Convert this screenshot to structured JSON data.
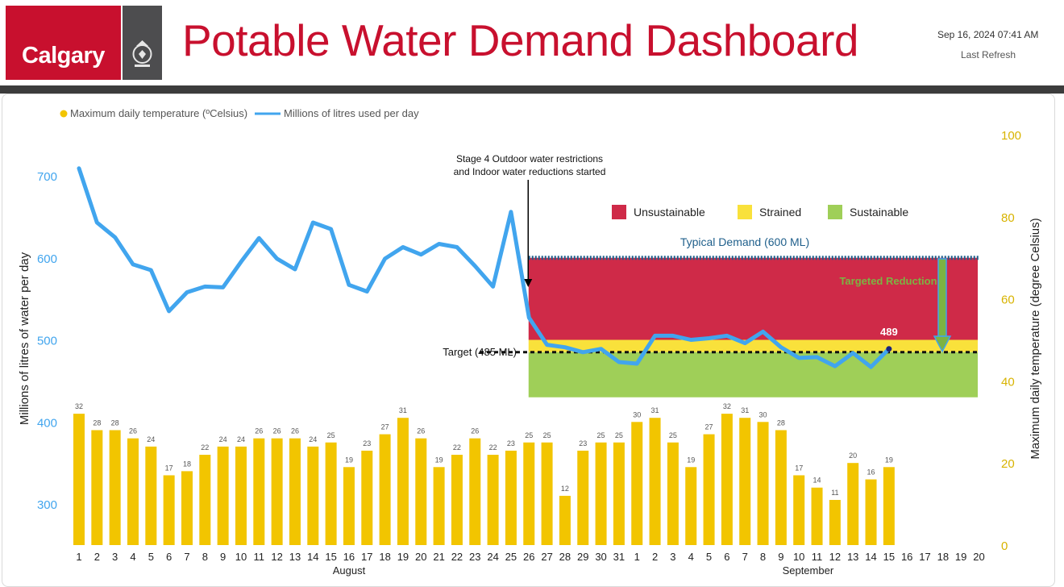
{
  "header": {
    "logo_text": "Calgary",
    "title": "Potable Water Demand Dashboard",
    "refresh_date": "Sep 16, 2024 07:41 AM",
    "refresh_label": "Last Refresh"
  },
  "chart_data": {
    "type": "bar",
    "title": "Potable Water Demand Dashboard",
    "legend": [
      {
        "label": "Maximum daily temperature (ºCelsius)",
        "color": "#f2c500",
        "marker": "dot"
      },
      {
        "label": "Millions of litres used per day",
        "color": "#41a5ee",
        "marker": "line"
      }
    ],
    "categories": [
      "1",
      "2",
      "3",
      "4",
      "5",
      "6",
      "7",
      "8",
      "9",
      "10",
      "11",
      "12",
      "13",
      "14",
      "15",
      "16",
      "17",
      "18",
      "19",
      "20",
      "21",
      "22",
      "23",
      "24",
      "25",
      "26",
      "27",
      "28",
      "29",
      "30",
      "31",
      "1",
      "2",
      "3",
      "4",
      "5",
      "6",
      "7",
      "8",
      "9",
      "10",
      "11",
      "12",
      "13",
      "14",
      "15",
      "16",
      "17",
      "18",
      "19",
      "20"
    ],
    "month_labels": [
      {
        "label": "August",
        "start_index": 0,
        "end_index": 30
      },
      {
        "label": "September",
        "start_index": 31,
        "end_index": 50
      }
    ],
    "series": [
      {
        "name": "Maximum daily temperature (ºCelsius)",
        "type": "bar",
        "axis": "right",
        "color": "#f2c500",
        "values": [
          32,
          28,
          28,
          26,
          24,
          17,
          18,
          22,
          24,
          24,
          26,
          26,
          26,
          24,
          25,
          19,
          23,
          27,
          31,
          26,
          19,
          22,
          26,
          22,
          23,
          25,
          25,
          12,
          23,
          25,
          25,
          30,
          31,
          25,
          19,
          27,
          32,
          31,
          30,
          28,
          17,
          14,
          11,
          20,
          16,
          19,
          null,
          null,
          null,
          null,
          null
        ]
      },
      {
        "name": "Millions of litres used per day",
        "type": "line",
        "axis": "left",
        "color": "#41a5ee",
        "values": [
          709,
          643,
          625,
          592,
          585,
          535,
          558,
          565,
          564,
          595,
          624,
          599,
          586,
          643,
          635,
          567,
          559,
          599,
          613,
          604,
          617,
          613,
          590,
          565,
          656,
          527,
          494,
          491,
          485,
          489,
          473,
          471,
          505,
          505,
          500,
          502,
          505,
          496,
          510,
          491,
          478,
          479,
          468,
          484,
          467,
          489,
          null,
          null,
          null,
          null,
          null
        ]
      }
    ],
    "y_left": {
      "label": "Millions of litres of water per day",
      "ticks": [
        300,
        400,
        500,
        600,
        700
      ],
      "range": [
        250,
        740
      ],
      "color": "#41a5ee"
    },
    "y_right": {
      "label": "Maximum daily temperature (degree Celsius)",
      "ticks": [
        0,
        20,
        40,
        60,
        80,
        100
      ],
      "range": [
        0,
        100
      ],
      "color": "#f2c500"
    },
    "zones": [
      {
        "label": "Unsustainable",
        "color": "#cf2a48",
        "from": 500,
        "to": 600
      },
      {
        "label": "Strained",
        "color": "#f9e13b",
        "from": 485,
        "to": 500
      },
      {
        "label": "Sustainable",
        "color": "#9fcf58",
        "from": 430,
        "to": 485
      }
    ],
    "zone_start_index": 25,
    "typical_demand": {
      "label": "Typical Demand (600 ML)",
      "value": 600
    },
    "target": {
      "label": "Target (485 ML)",
      "value": 485
    },
    "targeted_reduction_label": "Targeted Reduction",
    "latest_value_label": "489",
    "annotation": {
      "line1": "Stage 4 Outdoor water restrictions",
      "line2": "and Indoor water reductions started",
      "index": 25
    }
  }
}
